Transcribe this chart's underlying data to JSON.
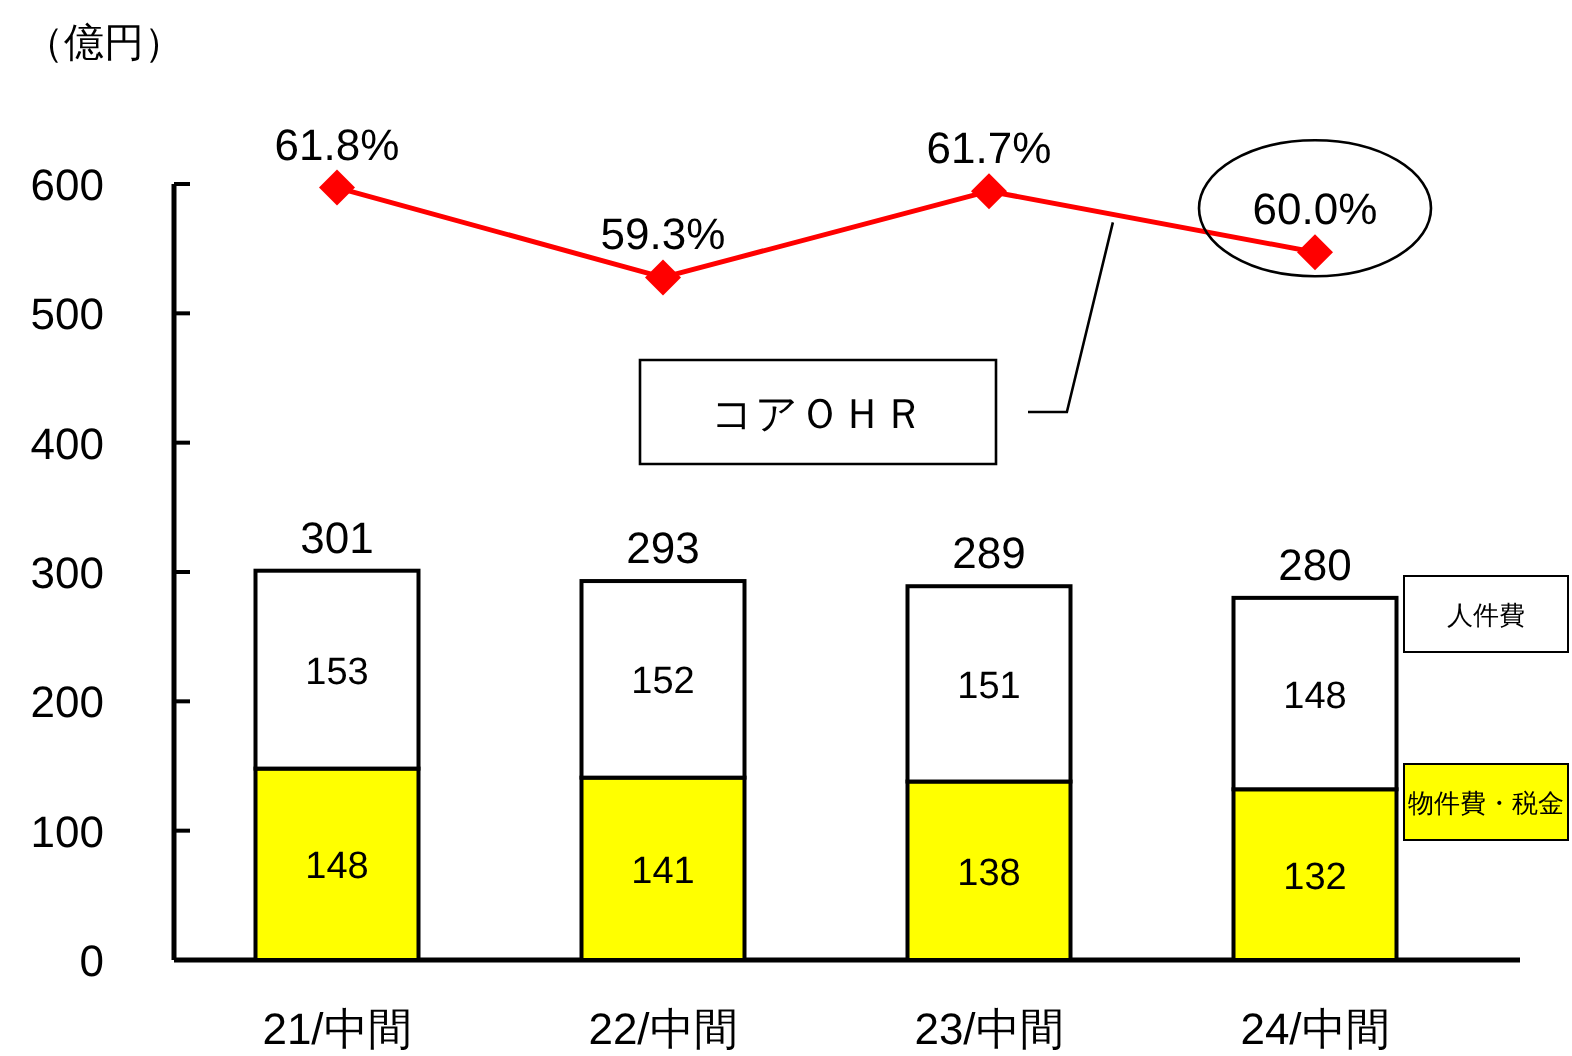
{
  "chart_data": {
    "type": "bar",
    "ylabel": "（億円）",
    "categories": [
      "21/中間",
      "22/中間",
      "23/中間",
      "24/中間"
    ],
    "stacked": true,
    "ylim": [
      0,
      600
    ],
    "yticks": [
      0,
      100,
      200,
      300,
      400,
      500,
      600
    ],
    "y2lim": [
      40.3,
      61.9
    ],
    "legend": "right",
    "data_labels": true,
    "totals": [
      "301",
      "293",
      "289",
      "280"
    ],
    "series": [
      {
        "name": "物件費・税金",
        "color": "#ffff00",
        "values": [
          148,
          141,
          138,
          132
        ]
      },
      {
        "name": "人件費",
        "color": "#ffffff",
        "values": [
          153,
          152,
          151,
          148
        ]
      },
      {
        "name": "コアＯＨＲ",
        "type": "line",
        "axis": "y2",
        "color": "#ff0000",
        "marker": "diamond",
        "values": [
          61.8,
          59.3,
          61.7,
          60.0
        ],
        "value_labels": [
          "61.8%",
          "59.3%",
          "61.7%",
          "60.0%"
        ]
      }
    ]
  }
}
